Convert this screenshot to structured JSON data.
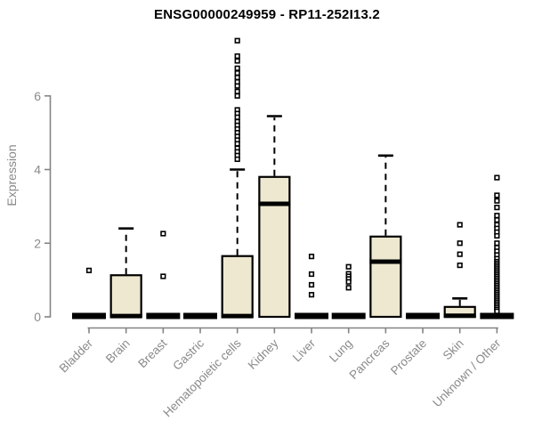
{
  "chart_data": {
    "type": "boxplot",
    "title": "ENSG00000249959 - RP11-252I13.2",
    "ylabel": "Expression",
    "xlabel": "",
    "yticks": [
      0,
      2,
      4,
      6
    ],
    "ylim": [
      0,
      7.8
    ],
    "grid": false,
    "legend": false,
    "categories": [
      "Bladder",
      "Brain",
      "Breast",
      "Gastric",
      "Hematopoietic cells",
      "Kidney",
      "Liver",
      "Lung",
      "Pancreas",
      "Prostate",
      "Skin",
      "Unknown / Other"
    ],
    "series": [
      {
        "name": "Bladder",
        "low": 0,
        "q1": 0,
        "median": 0,
        "q3": 0,
        "high": 0,
        "outliers": [
          1.26
        ]
      },
      {
        "name": "Brain",
        "low": 0,
        "q1": 0,
        "median": 0.02,
        "q3": 1.13,
        "high": 2.4,
        "outliers": []
      },
      {
        "name": "Breast",
        "low": 0,
        "q1": 0,
        "median": 0,
        "q3": 0,
        "high": 0,
        "outliers": [
          2.26,
          1.1
        ]
      },
      {
        "name": "Gastric",
        "low": 0,
        "q1": 0,
        "median": 0,
        "q3": 0,
        "high": 0,
        "outliers": []
      },
      {
        "name": "Hematopoietic cells",
        "low": 0,
        "q1": 0,
        "median": 0.02,
        "q3": 1.65,
        "high": 4.0,
        "outliers": [
          7.5,
          7.08,
          6.95,
          6.75,
          6.62,
          6.5,
          6.38,
          6.27,
          6.12,
          6.0,
          5.62,
          5.52,
          5.42,
          5.3,
          5.2,
          5.1,
          5.0,
          4.9,
          4.8,
          4.7,
          4.58,
          4.48,
          4.38,
          4.28
        ]
      },
      {
        "name": "Kidney",
        "low": 0,
        "q1": 0,
        "median": 3.07,
        "q3": 3.8,
        "high": 5.45,
        "outliers": []
      },
      {
        "name": "Liver",
        "low": 0,
        "q1": 0,
        "median": 0,
        "q3": 0,
        "high": 0,
        "outliers": [
          1.64,
          1.16,
          0.87,
          0.6
        ]
      },
      {
        "name": "Lung",
        "low": 0,
        "q1": 0,
        "median": 0,
        "q3": 0,
        "high": 0,
        "outliers": [
          1.36,
          1.17,
          1.1,
          1.03,
          0.95,
          0.79
        ]
      },
      {
        "name": "Pancreas",
        "low": 0,
        "q1": 0,
        "median": 1.5,
        "q3": 2.18,
        "high": 4.38,
        "outliers": []
      },
      {
        "name": "Prostate",
        "low": 0,
        "q1": 0,
        "median": 0,
        "q3": 0,
        "high": 0,
        "outliers": []
      },
      {
        "name": "Skin",
        "low": 0,
        "q1": 0,
        "median": 0.03,
        "q3": 0.27,
        "high": 0.5,
        "outliers": [
          2.5,
          2.0,
          1.7,
          1.4
        ]
      },
      {
        "name": "Unknown / Other",
        "low": 0,
        "q1": 0,
        "median": 0,
        "q3": 0,
        "high": 0,
        "outliers": [
          3.78,
          3.3,
          3.15,
          2.97,
          2.75,
          2.63,
          2.5,
          2.4,
          2.3,
          2.2,
          2.0,
          1.88,
          1.78,
          1.68,
          1.58,
          1.5,
          1.45,
          1.4,
          1.35,
          1.3,
          1.25,
          1.2,
          1.15,
          1.1,
          1.05,
          1.0,
          0.95,
          0.9,
          0.85,
          0.8,
          0.75,
          0.7,
          0.65,
          0.6,
          0.55,
          0.5,
          0.45,
          0.4,
          0.35,
          0.3,
          0.25,
          0.2,
          0.15
        ]
      }
    ],
    "style": {
      "box_fill": "#EDE8CF",
      "box_stroke": "#000000",
      "axis_color": "#848484",
      "label_color": "#8a8a8a",
      "title_color": "#000000",
      "background": "#ffffff"
    }
  }
}
